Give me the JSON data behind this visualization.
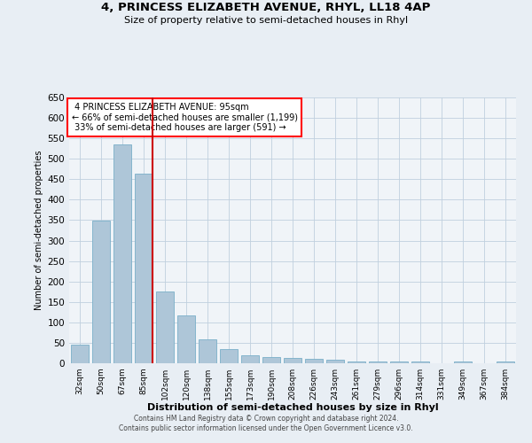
{
  "title": "4, PRINCESS ELIZABETH AVENUE, RHYL, LL18 4AP",
  "subtitle": "Size of property relative to semi-detached houses in Rhyl",
  "xlabel": "Distribution of semi-detached houses by size in Rhyl",
  "ylabel": "Number of semi-detached properties",
  "categories": [
    "32sqm",
    "50sqm",
    "67sqm",
    "85sqm",
    "102sqm",
    "120sqm",
    "138sqm",
    "155sqm",
    "173sqm",
    "190sqm",
    "208sqm",
    "226sqm",
    "243sqm",
    "261sqm",
    "279sqm",
    "296sqm",
    "314sqm",
    "331sqm",
    "349sqm",
    "367sqm",
    "384sqm"
  ],
  "values": [
    46,
    348,
    535,
    463,
    175,
    118,
    58,
    35,
    20,
    15,
    14,
    10,
    9,
    4,
    4,
    5,
    4,
    1,
    4,
    1,
    4
  ],
  "bar_color": "#aec6d8",
  "bar_edge_color": "#7aafc8",
  "highlight_index": 3,
  "highlight_color": "#cc0000",
  "property_size": "95sqm",
  "property_name": "4 PRINCESS ELIZABETH AVENUE",
  "pct_smaller": 66,
  "pct_smaller_count": 1199,
  "pct_larger": 33,
  "pct_larger_count": 591,
  "ylim": [
    0,
    650
  ],
  "yticks": [
    0,
    50,
    100,
    150,
    200,
    250,
    300,
    350,
    400,
    450,
    500,
    550,
    600,
    650
  ],
  "background_color": "#e8eef4",
  "plot_bg_color": "#f0f4f8",
  "footer_line1": "Contains HM Land Registry data © Crown copyright and database right 2024.",
  "footer_line2": "Contains public sector information licensed under the Open Government Licence v3.0."
}
